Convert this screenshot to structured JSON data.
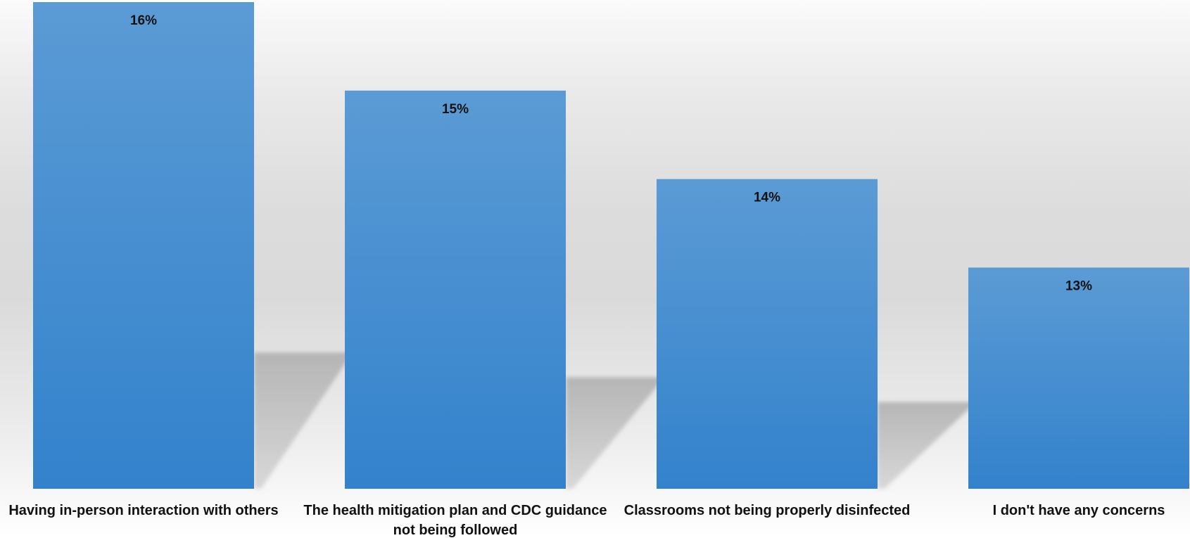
{
  "chart_data": {
    "type": "bar",
    "categories": [
      [
        "Having in-person interaction with others"
      ],
      [
        "The health mitigation plan and CDC guidance",
        "not being followed"
      ],
      [
        "Classrooms not being properly disinfected"
      ],
      [
        "I don't have any concerns"
      ]
    ],
    "values": [
      16,
      15,
      14,
      13
    ],
    "value_labels": [
      "16%",
      "15%",
      "14%",
      "13%"
    ],
    "unit": "%",
    "title": "",
    "xlabel": "",
    "ylabel": "",
    "ylim": [
      10.5,
      16
    ],
    "grid": false,
    "legend": "none",
    "bar_color_top": "#5b9bd5",
    "bar_color_bottom": "#3382cc",
    "shadow_color": "#a8a8a8"
  }
}
